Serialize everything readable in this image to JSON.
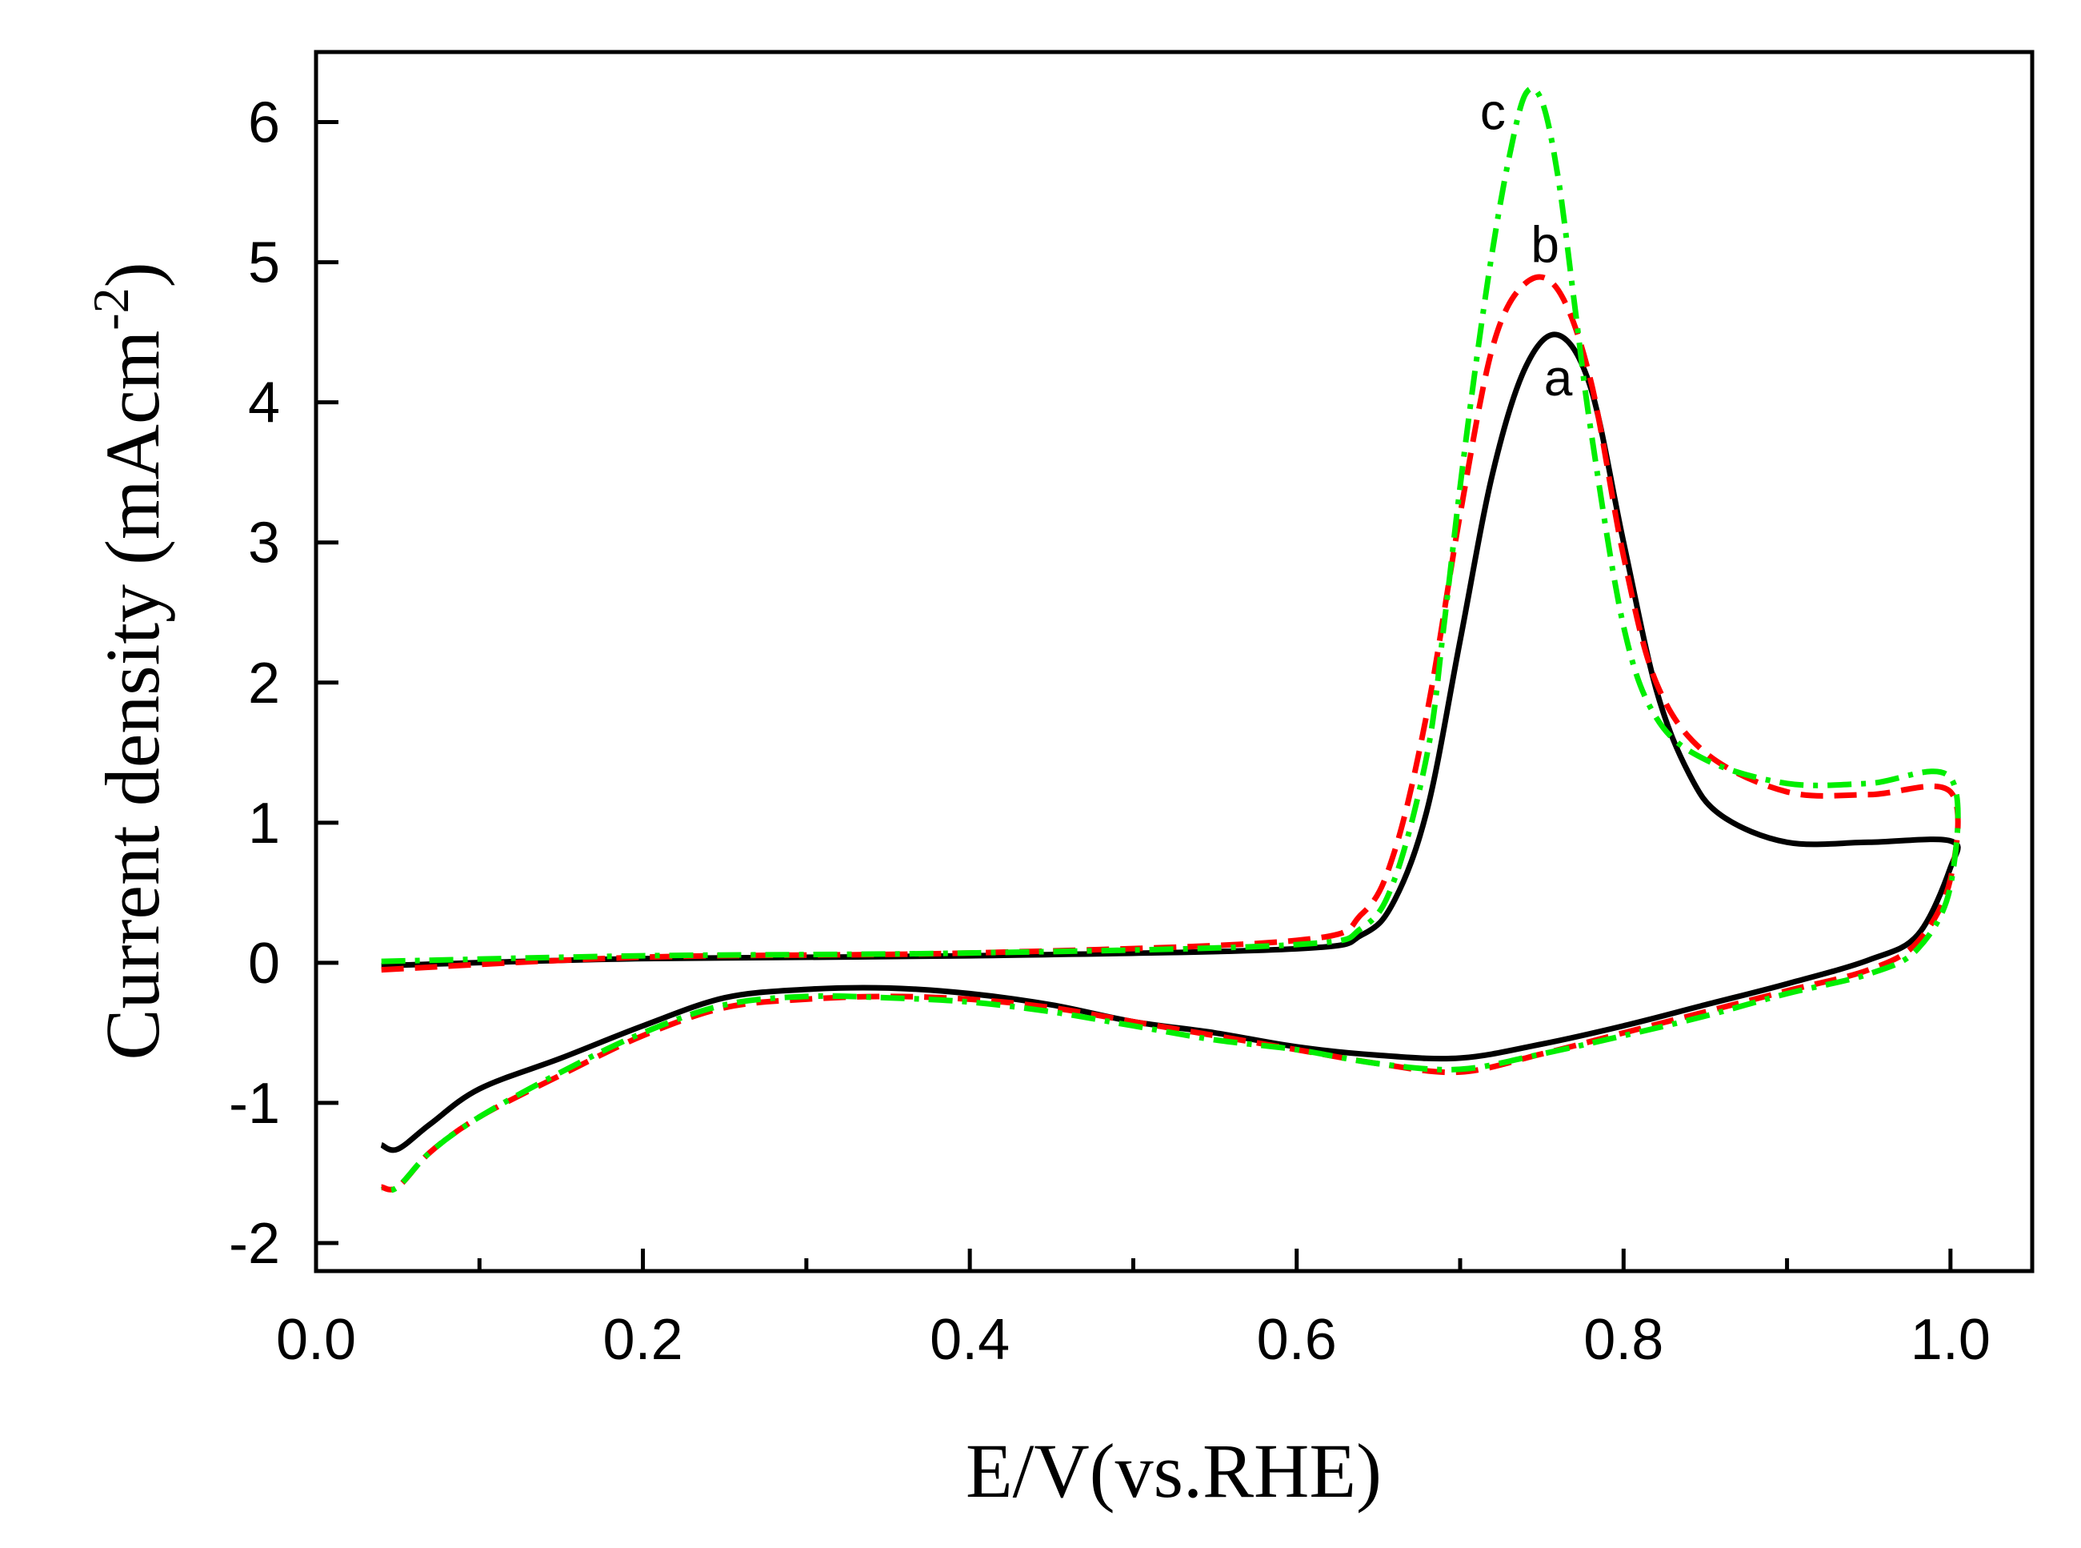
{
  "chart_data": {
    "type": "line",
    "title": "",
    "xlabel": "E/V(vs.RHE)",
    "ylabel_main": "Current  density (mAcm",
    "ylabel_sup": "-2",
    "ylabel_close": ")",
    "xlim": [
      0.0,
      1.05
    ],
    "ylim": [
      -2.2,
      6.5
    ],
    "x_ticks": [
      0.0,
      0.2,
      0.4,
      0.6,
      0.8,
      1.0
    ],
    "x_tick_labels": [
      "0.0",
      "0.2",
      "0.4",
      "0.6",
      "0.8",
      "1.0"
    ],
    "x_minor_ticks": [
      0.1,
      0.3,
      0.5,
      0.7,
      0.9
    ],
    "y_ticks": [
      -2,
      -1,
      0,
      1,
      2,
      3,
      4,
      5,
      6
    ],
    "y_tick_labels": [
      "-2",
      "-1",
      "0",
      "1",
      "2",
      "3",
      "4",
      "5",
      "6"
    ],
    "grid": false,
    "legend": "inline labels near peaks",
    "series": [
      {
        "name": "a",
        "color": "#000000",
        "dash": "solid",
        "label_at": [
          0.76,
          4.05
        ],
        "x": [
          0.04,
          0.2,
          0.4,
          0.6,
          0.64,
          0.66,
          0.68,
          0.7,
          0.72,
          0.74,
          0.76,
          0.78,
          0.8,
          0.82,
          0.84,
          0.86,
          0.9,
          0.95,
          1.0,
          1.0,
          0.98,
          0.95,
          0.9,
          0.85,
          0.8,
          0.75,
          0.7,
          0.65,
          0.6,
          0.55,
          0.5,
          0.45,
          0.4,
          0.35,
          0.3,
          0.25,
          0.2,
          0.15,
          0.1,
          0.07,
          0.05,
          0.04
        ],
        "y": [
          -0.02,
          0.03,
          0.05,
          0.1,
          0.2,
          0.45,
          1.1,
          2.3,
          3.5,
          4.25,
          4.48,
          4.1,
          3.0,
          1.95,
          1.35,
          1.05,
          0.86,
          0.86,
          0.87,
          0.68,
          0.2,
          0.02,
          -0.15,
          -0.3,
          -0.45,
          -0.58,
          -0.68,
          -0.66,
          -0.6,
          -0.5,
          -0.42,
          -0.3,
          -0.22,
          -0.18,
          -0.19,
          -0.25,
          -0.45,
          -0.68,
          -0.9,
          -1.15,
          -1.33,
          -1.3
        ]
      },
      {
        "name": "b",
        "color": "#ff0000",
        "dash": "dashed",
        "label_at": [
          0.752,
          5.0
        ],
        "x": [
          0.04,
          0.2,
          0.4,
          0.6,
          0.64,
          0.66,
          0.68,
          0.7,
          0.72,
          0.74,
          0.76,
          0.78,
          0.8,
          0.82,
          0.85,
          0.9,
          0.95,
          1.0,
          1.0,
          0.98,
          0.95,
          0.9,
          0.85,
          0.8,
          0.75,
          0.7,
          0.65,
          0.6,
          0.55,
          0.5,
          0.45,
          0.4,
          0.35,
          0.3,
          0.25,
          0.2,
          0.15,
          0.1,
          0.07,
          0.05,
          0.04
        ],
        "y": [
          -0.05,
          0.04,
          0.07,
          0.16,
          0.35,
          0.8,
          1.8,
          3.2,
          4.4,
          4.85,
          4.8,
          4.15,
          2.9,
          2.0,
          1.5,
          1.22,
          1.2,
          1.22,
          0.6,
          0.15,
          -0.05,
          -0.2,
          -0.35,
          -0.5,
          -0.65,
          -0.78,
          -0.72,
          -0.62,
          -0.52,
          -0.42,
          -0.32,
          -0.26,
          -0.24,
          -0.26,
          -0.32,
          -0.52,
          -0.8,
          -1.1,
          -1.35,
          -1.6,
          -1.6
        ]
      },
      {
        "name": "c",
        "color": "#00ee00",
        "dash": "dash-dot",
        "label_at": [
          0.72,
          5.95
        ],
        "x": [
          0.04,
          0.2,
          0.4,
          0.6,
          0.64,
          0.66,
          0.68,
          0.69,
          0.7,
          0.71,
          0.72,
          0.73,
          0.74,
          0.75,
          0.76,
          0.77,
          0.78,
          0.8,
          0.82,
          0.85,
          0.9,
          0.95,
          1.0,
          1.0,
          0.98,
          0.95,
          0.9,
          0.85,
          0.8,
          0.75,
          0.7,
          0.65,
          0.6,
          0.55,
          0.5,
          0.45,
          0.4,
          0.35,
          0.3,
          0.25,
          0.2,
          0.15,
          0.1,
          0.07,
          0.05,
          0.04
        ],
        "y": [
          0.01,
          0.05,
          0.07,
          0.13,
          0.25,
          0.6,
          1.5,
          2.4,
          3.4,
          4.3,
          5.1,
          5.75,
          6.2,
          6.15,
          5.6,
          4.7,
          3.8,
          2.4,
          1.75,
          1.45,
          1.28,
          1.28,
          1.32,
          0.55,
          0.1,
          -0.08,
          -0.22,
          -0.38,
          -0.52,
          -0.65,
          -0.76,
          -0.72,
          -0.62,
          -0.55,
          -0.45,
          -0.35,
          -0.28,
          -0.25,
          -0.24,
          -0.3,
          -0.5,
          -0.78,
          -1.1,
          -1.35,
          -1.6,
          -1.62
        ]
      }
    ]
  }
}
